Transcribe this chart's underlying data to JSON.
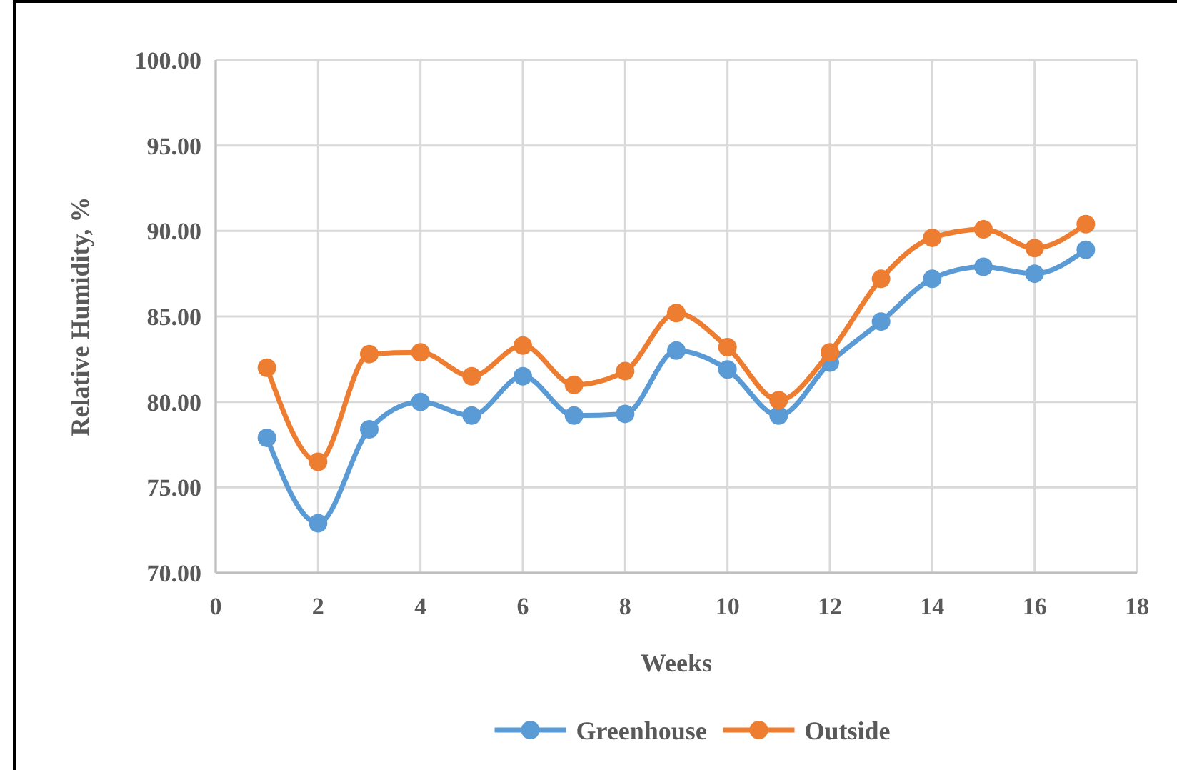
{
  "chart_data": {
    "type": "line",
    "xlabel": "Weeks",
    "ylabel": "Relative Humidity, %",
    "x": [
      1,
      2,
      3,
      4,
      5,
      6,
      7,
      8,
      9,
      10,
      11,
      12,
      13,
      14,
      15,
      16,
      17
    ],
    "series": [
      {
        "name": "Greenhouse",
        "color": "#5b9bd5",
        "values": [
          77.9,
          72.9,
          78.4,
          80.0,
          79.2,
          81.5,
          79.2,
          79.3,
          83.0,
          81.9,
          79.2,
          82.3,
          84.7,
          87.2,
          87.9,
          87.5,
          88.9
        ]
      },
      {
        "name": "Outside",
        "color": "#ed7d31",
        "values": [
          82.0,
          76.5,
          82.8,
          82.9,
          81.5,
          83.3,
          81.0,
          81.8,
          85.2,
          83.2,
          80.1,
          82.9,
          87.2,
          89.6,
          90.1,
          89.0,
          90.4
        ]
      }
    ],
    "xlim": [
      0,
      18
    ],
    "xticks": [
      0,
      2,
      4,
      6,
      8,
      10,
      12,
      14,
      16,
      18
    ],
    "ylim": [
      70,
      100
    ],
    "yticks": [
      {
        "value": 70,
        "label": "70.00"
      },
      {
        "value": 75,
        "label": "75.00"
      },
      {
        "value": 80,
        "label": "80.00"
      },
      {
        "value": 85,
        "label": "85.00"
      },
      {
        "value": 90,
        "label": "90.00"
      },
      {
        "value": 95,
        "label": "95.00"
      },
      {
        "value": 100,
        "label": "100.00"
      }
    ],
    "grid": true,
    "legend": "bottom",
    "marker": "circle",
    "line_style": "solid"
  }
}
